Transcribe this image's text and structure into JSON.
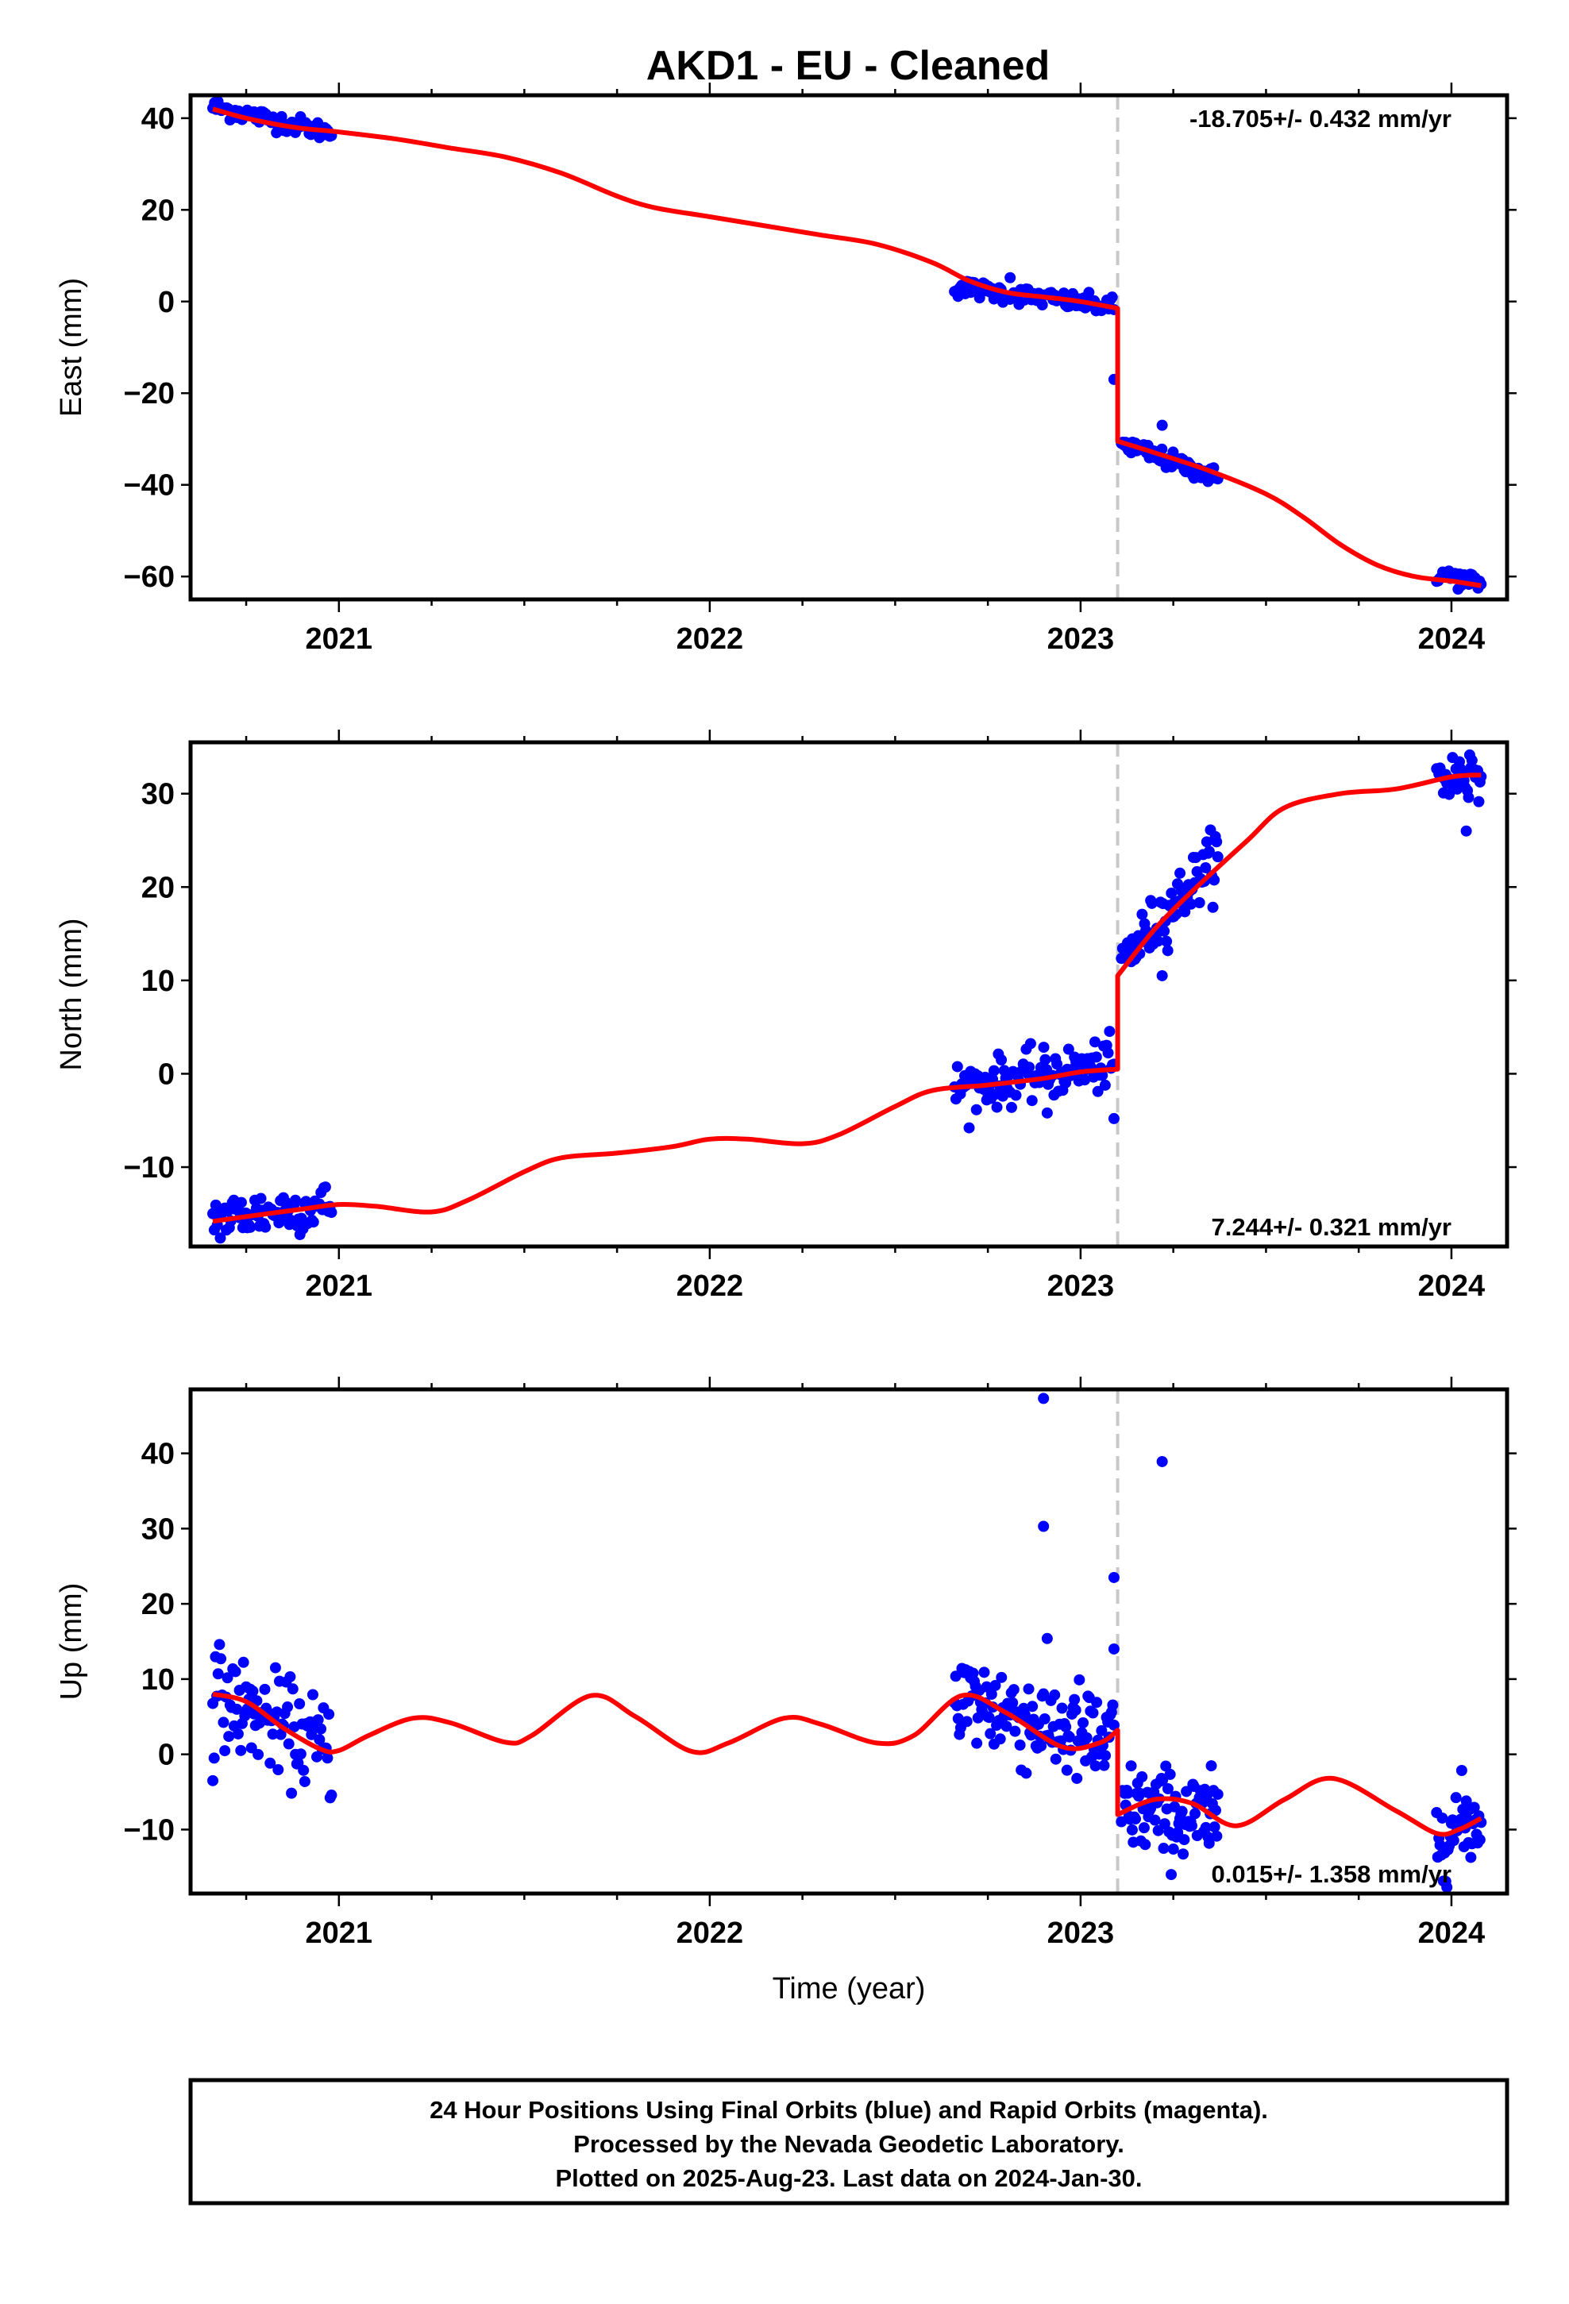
{
  "title": "AKD1  - EU - Cleaned",
  "colors": {
    "data": "#0000ff",
    "model": "#ff0000",
    "event": "#c8c8c8",
    "frame": "#000000"
  },
  "chart_data": [
    {
      "type": "scatter",
      "name": "east",
      "ylabel": "East (mm)",
      "xlabel": "",
      "rate_text": "-18.705+/- 0.432 mm/yr",
      "rate_position": "top-right",
      "xlim": [
        2020.6,
        2024.15
      ],
      "ylim": [
        -65,
        45
      ],
      "yticks": [
        -60,
        -40,
        -20,
        0,
        20,
        40
      ],
      "yticks_labels": [
        "−60",
        "−40",
        "−20",
        "0",
        "20",
        "40"
      ],
      "xticks": [
        2021,
        2022,
        2023,
        2024
      ],
      "xticks_labels": [
        "2021",
        "2022",
        "2023",
        "2024"
      ],
      "event_x": 2023.1,
      "data_segments": [
        {
          "x_start": 2020.66,
          "x_end": 2020.98,
          "y_start": 42.5,
          "y_end": 36.8,
          "spread": 1.0,
          "n": 70
        },
        {
          "x_start": 2022.66,
          "x_end": 2023.09,
          "y_start": 3.2,
          "y_end": -1.2,
          "spread": 1.0,
          "n": 90
        },
        {
          "x_start": 2023.11,
          "x_end": 2023.37,
          "y_start": -31.0,
          "y_end": -38.5,
          "spread": 1.0,
          "n": 70
        },
        {
          "x_start": 2023.96,
          "x_end": 2024.08,
          "y_start": -59.5,
          "y_end": -61.5,
          "spread": 1.0,
          "n": 30
        }
      ],
      "outliers": [
        {
          "x": 2022.81,
          "y": 5.2
        },
        {
          "x": 2023.09,
          "y": -17
        },
        {
          "x": 2023.22,
          "y": -27
        }
      ],
      "model": {
        "points": [
          [
            2020.66,
            42
          ],
          [
            2020.75,
            40
          ],
          [
            2020.88,
            38
          ],
          [
            2021.0,
            37
          ],
          [
            2021.15,
            35.5
          ],
          [
            2021.3,
            33.5
          ],
          [
            2021.45,
            31.5
          ],
          [
            2021.6,
            28
          ],
          [
            2021.75,
            23
          ],
          [
            2021.85,
            20.5
          ],
          [
            2022.0,
            18.5
          ],
          [
            2022.15,
            16.5
          ],
          [
            2022.3,
            14.5
          ],
          [
            2022.45,
            12.5
          ],
          [
            2022.6,
            8.5
          ],
          [
            2022.7,
            4.5
          ],
          [
            2022.8,
            2
          ],
          [
            2022.9,
            1
          ],
          [
            2023.0,
            0
          ],
          [
            2023.1,
            -1.5
          ],
          [
            2023.1,
            -30.5
          ],
          [
            2023.2,
            -33
          ],
          [
            2023.35,
            -37
          ],
          [
            2023.5,
            -42
          ],
          [
            2023.6,
            -47
          ],
          [
            2023.7,
            -53
          ],
          [
            2023.8,
            -57.5
          ],
          [
            2023.9,
            -60
          ],
          [
            2024.0,
            -61
          ],
          [
            2024.08,
            -62
          ]
        ]
      }
    },
    {
      "type": "scatter",
      "name": "north",
      "ylabel": "North (mm)",
      "xlabel": "",
      "rate_text": "7.244+/- 0.321 mm/yr",
      "rate_position": "bottom-right",
      "xlim": [
        2020.6,
        2024.15
      ],
      "ylim": [
        -18.5,
        35.5
      ],
      "yticks": [
        -10,
        0,
        10,
        20,
        30
      ],
      "yticks_labels": [
        "−10",
        "0",
        "10",
        "20",
        "30"
      ],
      "xticks": [
        2021,
        2022,
        2023,
        2024
      ],
      "xticks_labels": [
        "2021",
        "2022",
        "2023",
        "2024"
      ],
      "event_x": 2023.1,
      "data_segments": [
        {
          "x_start": 2020.66,
          "x_end": 2020.98,
          "y_start": -15.5,
          "y_end": -14.0,
          "spread": 1.3,
          "n": 80
        },
        {
          "x_start": 2022.66,
          "x_end": 2023.09,
          "y_start": -1.5,
          "y_end": 1.0,
          "spread": 1.3,
          "n": 110
        },
        {
          "x_start": 2023.11,
          "x_end": 2023.37,
          "y_start": 12.0,
          "y_end": 23.5,
          "spread": 1.5,
          "n": 80
        },
        {
          "x_start": 2023.96,
          "x_end": 2024.08,
          "y_start": 31.5,
          "y_end": 32.5,
          "spread": 1.5,
          "n": 40
        }
      ],
      "outliers": [
        {
          "x": 2023.09,
          "y": -4.8
        },
        {
          "x": 2022.91,
          "y": -4.2
        },
        {
          "x": 2024.04,
          "y": 26
        },
        {
          "x": 2023.22,
          "y": 10.5
        }
      ],
      "model": {
        "points": [
          [
            2020.66,
            -15.8
          ],
          [
            2020.75,
            -15.3
          ],
          [
            2020.9,
            -14.5
          ],
          [
            2021.0,
            -14.0
          ],
          [
            2021.1,
            -14.2
          ],
          [
            2021.25,
            -14.8
          ],
          [
            2021.35,
            -13.5
          ],
          [
            2021.5,
            -10.5
          ],
          [
            2021.6,
            -9.0
          ],
          [
            2021.75,
            -8.5
          ],
          [
            2021.9,
            -7.8
          ],
          [
            2022.0,
            -7.0
          ],
          [
            2022.1,
            -7.0
          ],
          [
            2022.25,
            -7.5
          ],
          [
            2022.35,
            -6.5
          ],
          [
            2022.5,
            -3.5
          ],
          [
            2022.6,
            -1.8
          ],
          [
            2022.75,
            -1.2
          ],
          [
            2022.9,
            -0.5
          ],
          [
            2023.0,
            0.2
          ],
          [
            2023.1,
            0.5
          ],
          [
            2023.1,
            10.5
          ],
          [
            2023.2,
            15.5
          ],
          [
            2023.3,
            19.5
          ],
          [
            2023.45,
            25
          ],
          [
            2023.55,
            28.5
          ],
          [
            2023.7,
            30
          ],
          [
            2023.85,
            30.5
          ],
          [
            2024.0,
            31.8
          ],
          [
            2024.08,
            32
          ]
        ]
      }
    },
    {
      "type": "scatter",
      "name": "up",
      "ylabel": "Up (mm)",
      "xlabel": "Time (year)",
      "rate_text": "0.015+/- 1.358 mm/yr",
      "rate_position": "bottom-right",
      "xlim": [
        2020.6,
        2024.15
      ],
      "ylim": [
        -18.5,
        48.5
      ],
      "yticks": [
        -10,
        0,
        10,
        20,
        30,
        40
      ],
      "yticks_labels": [
        "−10",
        "0",
        "10",
        "20",
        "30",
        "40"
      ],
      "xticks": [
        2021,
        2022,
        2023,
        2024
      ],
      "xticks_labels": [
        "2021",
        "2022",
        "2023",
        "2024"
      ],
      "event_x": 2023.1,
      "data_segments": [
        {
          "x_start": 2020.66,
          "x_end": 2020.98,
          "y_start": 8.0,
          "y_end": 0.5,
          "spread": 3.2,
          "n": 90
        },
        {
          "x_start": 2022.66,
          "x_end": 2023.09,
          "y_start": 8.0,
          "y_end": 1.0,
          "spread": 3.5,
          "n": 130
        },
        {
          "x_start": 2023.11,
          "x_end": 2023.37,
          "y_start": -7.0,
          "y_end": -9.0,
          "spread": 3.0,
          "n": 90
        },
        {
          "x_start": 2023.96,
          "x_end": 2024.08,
          "y_start": -10.5,
          "y_end": -8.5,
          "spread": 3.0,
          "n": 40
        }
      ],
      "outliers": [
        {
          "x": 2022.9,
          "y": 47.3
        },
        {
          "x": 2022.9,
          "y": 30.3
        },
        {
          "x": 2023.09,
          "y": 23.5
        },
        {
          "x": 2023.22,
          "y": 38.9
        },
        {
          "x": 2023.09,
          "y": 14
        },
        {
          "x": 2020.66,
          "y": -3.5
        }
      ],
      "model": {
        "points": [
          [
            2020.66,
            8
          ],
          [
            2020.75,
            7
          ],
          [
            2020.85,
            3.5
          ],
          [
            2020.95,
            0.7
          ],
          [
            2021.0,
            0.5
          ],
          [
            2021.08,
            2.5
          ],
          [
            2021.2,
            4.8
          ],
          [
            2021.3,
            4.2
          ],
          [
            2021.45,
            1.6
          ],
          [
            2021.52,
            2.5
          ],
          [
            2021.68,
            7.8
          ],
          [
            2021.8,
            5
          ],
          [
            2021.95,
            0.4
          ],
          [
            2022.05,
            1.5
          ],
          [
            2022.2,
            4.8
          ],
          [
            2022.3,
            4
          ],
          [
            2022.45,
            1.5
          ],
          [
            2022.55,
            2.5
          ],
          [
            2022.68,
            7.8
          ],
          [
            2022.8,
            5.5
          ],
          [
            2022.95,
            1
          ],
          [
            2023.05,
            1.5
          ],
          [
            2023.1,
            3.2
          ],
          [
            2023.1,
            -8
          ],
          [
            2023.2,
            -6
          ],
          [
            2023.3,
            -6.5
          ],
          [
            2023.42,
            -9.5
          ],
          [
            2023.55,
            -6
          ],
          [
            2023.68,
            -3.2
          ],
          [
            2023.85,
            -7.5
          ],
          [
            2023.96,
            -10.5
          ],
          [
            2024.02,
            -10
          ],
          [
            2024.08,
            -8.5
          ]
        ]
      }
    }
  ],
  "footer": {
    "line1": "24 Hour Positions Using Final Orbits (blue) and Rapid Orbits (magenta).",
    "line2": "Processed by the Nevada Geodetic Laboratory.",
    "line3": "Plotted on 2025-Aug-23. Last data on 2024-Jan-30."
  }
}
